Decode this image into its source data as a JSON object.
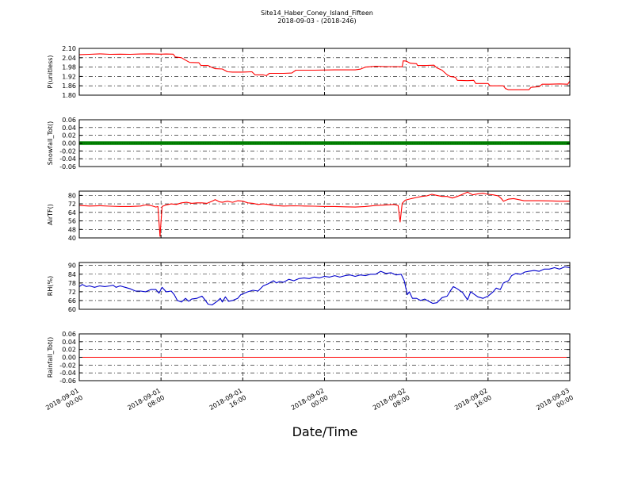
{
  "chart_data": {
    "type": "line",
    "title": "Site14_Haber_Coney_Island_Fifteen",
    "subtitle": "2018-09-03 - (2018-246)",
    "xlabel": "Date/Time",
    "x_ticks": [
      {
        "line1": "2018-09-01",
        "line2": "00:00",
        "h": 0
      },
      {
        "line1": "2018-09-01",
        "line2": "08:00",
        "h": 8
      },
      {
        "line1": "2018-09-01",
        "line2": "16:00",
        "h": 16
      },
      {
        "line1": "2018-09-02",
        "line2": "00:00",
        "h": 24
      },
      {
        "line1": "2018-09-02",
        "line2": "08:00",
        "h": 32
      },
      {
        "line1": "2018-09-02",
        "line2": "16:00",
        "h": 40
      },
      {
        "line1": "2018-09-03",
        "line2": "00:00",
        "h": 48
      }
    ],
    "xlim_hours": [
      0,
      48
    ],
    "grid": true,
    "panels": [
      {
        "ylabel": "P(unitless)",
        "ylim": [
          1.8,
          2.1
        ],
        "yticks": [
          1.8,
          1.86,
          1.92,
          1.98,
          2.04,
          2.1
        ],
        "tick_decimals": 2,
        "color": "#ff0000",
        "marker": false,
        "series": [
          [
            0,
            2.06
          ],
          [
            1,
            2.062
          ],
          [
            2,
            2.065
          ],
          [
            3,
            2.062
          ],
          [
            4,
            2.063
          ],
          [
            5,
            2.062
          ],
          [
            6,
            2.064
          ],
          [
            7,
            2.065
          ],
          [
            8,
            2.063
          ],
          [
            8.5,
            2.064
          ],
          [
            9.2,
            2.063
          ],
          [
            9.4,
            2.045
          ],
          [
            10,
            2.04
          ],
          [
            10.4,
            2.025
          ],
          [
            10.8,
            2.01
          ],
          [
            11.7,
            2.008
          ],
          [
            11.9,
            1.99
          ],
          [
            12.6,
            1.99
          ],
          [
            12.9,
            1.98
          ],
          [
            13.3,
            1.97
          ],
          [
            14,
            1.968
          ],
          [
            14.5,
            1.95
          ],
          [
            15,
            1.948
          ],
          [
            16,
            1.948
          ],
          [
            16.9,
            1.95
          ],
          [
            17.2,
            1.93
          ],
          [
            18,
            1.93
          ],
          [
            18.3,
            1.925
          ],
          [
            18.6,
            1.94
          ],
          [
            20,
            1.94
          ],
          [
            20.8,
            1.942
          ],
          [
            21.2,
            1.96
          ],
          [
            23,
            1.96
          ],
          [
            25,
            1.962
          ],
          [
            27,
            1.962
          ],
          [
            27.5,
            1.967
          ],
          [
            28,
            1.98
          ],
          [
            29,
            1.985
          ],
          [
            30,
            1.983
          ],
          [
            31,
            1.983
          ],
          [
            31.6,
            1.982
          ],
          [
            31.7,
            2.02
          ],
          [
            32,
            2.018
          ],
          [
            32.4,
            2.005
          ],
          [
            33,
            2.002
          ],
          [
            33.1,
            1.99
          ],
          [
            34,
            1.99
          ],
          [
            34.7,
            1.992
          ],
          [
            35,
            1.975
          ],
          [
            35.5,
            1.96
          ],
          [
            36,
            1.93
          ],
          [
            36.3,
            1.92
          ],
          [
            36.8,
            1.915
          ],
          [
            37,
            1.895
          ],
          [
            38,
            1.893
          ],
          [
            38.6,
            1.895
          ],
          [
            38.8,
            1.875
          ],
          [
            40,
            1.875
          ],
          [
            40.2,
            1.86
          ],
          [
            41.5,
            1.86
          ],
          [
            41.7,
            1.842
          ],
          [
            42,
            1.835
          ],
          [
            44,
            1.835
          ],
          [
            44.2,
            1.85
          ],
          [
            45,
            1.855
          ],
          [
            45.3,
            1.87
          ],
          [
            46,
            1.87
          ],
          [
            47,
            1.872
          ],
          [
            47.8,
            1.87
          ],
          [
            48,
            1.89
          ]
        ]
      },
      {
        "ylabel": "Snowfall_Tot()",
        "ylim": [
          -0.06,
          0.06
        ],
        "yticks": [
          -0.06,
          -0.04,
          -0.02,
          0.0,
          0.02,
          0.04,
          0.06
        ],
        "tick_decimals": 2,
        "color": "#008000",
        "marker": true,
        "series": [
          [
            0,
            0
          ],
          [
            48,
            0
          ]
        ]
      },
      {
        "ylabel": "AirTF()",
        "ylim": [
          40,
          84
        ],
        "yticks": [
          40,
          48,
          56,
          64,
          72,
          80
        ],
        "tick_decimals": 0,
        "color": "#ff0000",
        "marker": false,
        "series": [
          [
            0,
            70.5
          ],
          [
            1,
            70
          ],
          [
            2,
            70.3
          ],
          [
            3,
            69.8
          ],
          [
            4,
            69.5
          ],
          [
            5,
            69.5
          ],
          [
            6,
            70
          ],
          [
            6.5,
            71
          ],
          [
            7,
            70.5
          ],
          [
            7.5,
            69
          ],
          [
            7.7,
            69.5
          ],
          [
            7.9,
            41.5
          ],
          [
            8.1,
            69.5
          ],
          [
            8.5,
            71
          ],
          [
            9,
            72
          ],
          [
            9.5,
            71.5
          ],
          [
            10,
            73
          ],
          [
            10.5,
            73.5
          ],
          [
            11,
            72.5
          ],
          [
            11.5,
            73
          ],
          [
            12,
            73
          ],
          [
            12.5,
            72.5
          ],
          [
            13,
            74.5
          ],
          [
            13.3,
            76
          ],
          [
            13.7,
            74
          ],
          [
            14,
            73.5
          ],
          [
            14.5,
            74.5
          ],
          [
            15,
            73.5
          ],
          [
            15.5,
            75
          ],
          [
            16,
            74.5
          ],
          [
            16.5,
            73
          ],
          [
            17,
            72.5
          ],
          [
            17.5,
            71.5
          ],
          [
            18,
            72
          ],
          [
            18.5,
            71.5
          ],
          [
            19,
            70.5
          ],
          [
            20,
            70
          ],
          [
            21,
            70.2
          ],
          [
            22,
            70
          ],
          [
            23,
            69.8
          ],
          [
            24,
            69.5
          ],
          [
            25,
            69.5
          ],
          [
            26,
            69.2
          ],
          [
            27,
            69
          ],
          [
            28,
            69.5
          ],
          [
            29,
            70.5
          ],
          [
            30,
            71
          ],
          [
            30.8,
            71.5
          ],
          [
            31.2,
            70.5
          ],
          [
            31.4,
            55
          ],
          [
            31.6,
            72.5
          ],
          [
            31.9,
            75.5
          ],
          [
            32.5,
            77
          ],
          [
            33,
            78
          ],
          [
            33.5,
            79
          ],
          [
            34,
            79.5
          ],
          [
            34.5,
            81
          ],
          [
            35,
            80
          ],
          [
            35.5,
            79
          ],
          [
            36,
            79
          ],
          [
            36.5,
            77.5
          ],
          [
            37,
            79
          ],
          [
            37.5,
            81
          ],
          [
            38,
            83
          ],
          [
            38.5,
            80.5
          ],
          [
            39,
            81.5
          ],
          [
            39.5,
            82
          ],
          [
            40,
            81
          ],
          [
            40.5,
            80.5
          ],
          [
            41,
            79.5
          ],
          [
            41.3,
            77
          ],
          [
            41.5,
            74.5
          ],
          [
            42,
            76.5
          ],
          [
            42.5,
            77
          ],
          [
            43,
            76
          ],
          [
            43.5,
            75
          ],
          [
            44,
            75
          ],
          [
            45,
            75
          ],
          [
            46,
            74.8
          ],
          [
            47,
            74.5
          ],
          [
            48,
            74.5
          ]
        ]
      },
      {
        "ylabel": "RH(%)",
        "ylim": [
          60,
          92
        ],
        "yticks": [
          60,
          66,
          72,
          78,
          84,
          90
        ],
        "tick_decimals": 0,
        "color": "#0000cc",
        "marker": false,
        "series": [
          [
            0,
            75.5
          ],
          [
            0.3,
            77
          ],
          [
            0.7,
            75.5
          ],
          [
            1,
            76
          ],
          [
            1.5,
            75
          ],
          [
            2,
            76
          ],
          [
            2.5,
            75.5
          ],
          [
            3,
            76
          ],
          [
            3.3,
            76.5
          ],
          [
            3.6,
            75
          ],
          [
            4,
            76
          ],
          [
            4.5,
            75
          ],
          [
            5,
            74
          ],
          [
            5.5,
            72.5
          ],
          [
            6,
            72.5
          ],
          [
            6.5,
            72
          ],
          [
            7,
            73.5
          ],
          [
            7.5,
            73.5
          ],
          [
            7.8,
            71
          ],
          [
            8.1,
            75
          ],
          [
            8.5,
            72
          ],
          [
            9,
            72.5
          ],
          [
            9.3,
            70
          ],
          [
            9.6,
            66
          ],
          [
            10,
            65
          ],
          [
            10.4,
            67.5
          ],
          [
            10.7,
            65.5
          ],
          [
            11,
            67
          ],
          [
            11.5,
            67.5
          ],
          [
            12,
            69
          ],
          [
            12.3,
            66.5
          ],
          [
            12.6,
            63.5
          ],
          [
            13,
            63
          ],
          [
            13.5,
            65.5
          ],
          [
            13.8,
            67.5
          ],
          [
            14,
            65
          ],
          [
            14.3,
            68.5
          ],
          [
            14.6,
            65.5
          ],
          [
            15,
            66
          ],
          [
            15.5,
            67.5
          ],
          [
            15.8,
            70
          ],
          [
            16.5,
            72
          ],
          [
            17,
            73
          ],
          [
            17.5,
            72.5
          ],
          [
            18,
            76
          ],
          [
            18.5,
            77.5
          ],
          [
            19,
            79.5
          ],
          [
            19.3,
            78
          ],
          [
            19.6,
            79
          ],
          [
            20,
            78.5
          ],
          [
            20.5,
            80.5
          ],
          [
            21,
            79.5
          ],
          [
            21.5,
            81
          ],
          [
            22,
            81.5
          ],
          [
            22.5,
            81
          ],
          [
            23,
            82
          ],
          [
            23.5,
            81.5
          ],
          [
            24,
            82.5
          ],
          [
            24.5,
            82
          ],
          [
            25,
            83
          ],
          [
            25.5,
            82
          ],
          [
            26,
            83
          ],
          [
            26.5,
            83.5
          ],
          [
            27,
            82.5
          ],
          [
            27.5,
            83.5
          ],
          [
            28,
            83
          ],
          [
            28.5,
            84
          ],
          [
            29,
            84
          ],
          [
            29.5,
            86
          ],
          [
            30,
            84.5
          ],
          [
            30.5,
            85
          ],
          [
            31,
            83.5
          ],
          [
            31.5,
            84
          ],
          [
            31.8,
            79.5
          ],
          [
            32.1,
            70
          ],
          [
            32.3,
            72
          ],
          [
            32.6,
            67.5
          ],
          [
            33,
            67.5
          ],
          [
            33.4,
            66
          ],
          [
            33.8,
            67
          ],
          [
            34.2,
            65.5
          ],
          [
            34.6,
            64
          ],
          [
            35,
            64.5
          ],
          [
            35.5,
            68
          ],
          [
            36,
            69
          ],
          [
            36.3,
            72.5
          ],
          [
            36.6,
            75.5
          ],
          [
            37,
            74
          ],
          [
            37.5,
            71.5
          ],
          [
            38,
            66.5
          ],
          [
            38.3,
            72
          ],
          [
            38.7,
            70
          ],
          [
            39,
            68.5
          ],
          [
            39.5,
            67.5
          ],
          [
            40,
            69
          ],
          [
            40.5,
            72
          ],
          [
            40.8,
            74.5
          ],
          [
            41.2,
            73.5
          ],
          [
            41.5,
            78
          ],
          [
            42,
            79.5
          ],
          [
            42.3,
            83
          ],
          [
            42.7,
            84.5
          ],
          [
            43.2,
            84
          ],
          [
            43.6,
            85.5
          ],
          [
            44,
            86
          ],
          [
            44.5,
            86.5
          ],
          [
            45,
            86
          ],
          [
            45.5,
            87.5
          ],
          [
            46,
            87.5
          ],
          [
            46.5,
            88.5
          ],
          [
            47,
            87.5
          ],
          [
            47.5,
            89
          ],
          [
            48,
            88.5
          ]
        ]
      },
      {
        "ylabel": "Rainfall_Tot()",
        "ylim": [
          -0.06,
          0.06
        ],
        "yticks": [
          -0.06,
          -0.04,
          -0.02,
          0.0,
          0.02,
          0.04,
          0.06
        ],
        "tick_decimals": 2,
        "color": "#ff0000",
        "marker": false,
        "series": [
          [
            0,
            0
          ],
          [
            48,
            0
          ]
        ]
      }
    ]
  }
}
